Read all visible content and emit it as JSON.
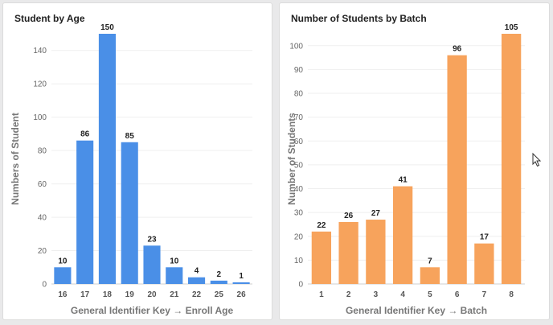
{
  "chart_data": [
    {
      "type": "bar",
      "title": "Student by Age",
      "xlabel": "General Identifier Key → Enroll Age",
      "ylabel": "Numbers of Student",
      "categories": [
        "16",
        "17",
        "18",
        "19",
        "20",
        "21",
        "22",
        "25",
        "26"
      ],
      "values": [
        10,
        86,
        150,
        85,
        23,
        10,
        4,
        2,
        1
      ],
      "yticks": [
        0,
        20,
        40,
        60,
        80,
        100,
        120,
        140
      ],
      "ylim": [
        0,
        150
      ],
      "color": "#4a8fe7",
      "grid": true,
      "legend": "none"
    },
    {
      "type": "bar",
      "title": "Number of Students by Batch",
      "xlabel": "General Identifier Key → Batch",
      "ylabel": "Number of Students",
      "categories": [
        "1",
        "2",
        "3",
        "4",
        "5",
        "6",
        "7",
        "8"
      ],
      "values": [
        22,
        26,
        27,
        41,
        7,
        96,
        17,
        105
      ],
      "yticks": [
        0,
        10,
        20,
        30,
        40,
        50,
        60,
        70,
        80,
        90,
        100
      ],
      "ylim": [
        0,
        105
      ],
      "color": "#f7a35c",
      "grid": true,
      "legend": "none"
    }
  ]
}
